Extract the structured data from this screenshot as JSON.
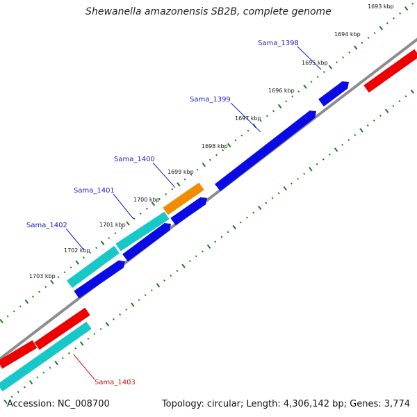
{
  "title": "Shewanella amazonensis SB2B, complete genome",
  "footer": {
    "accession": "Accession: NC_008700",
    "summary": "Topology: circular; Length: 4,306,142 bp; Genes: 3,774"
  },
  "colors": {
    "backbone": "#8c8c8c",
    "tick": "#1a7a1a",
    "gene_label_blue": "#1a1acc",
    "gene_label_red": "#cc1111",
    "blue_gene": "#0a0ae6",
    "cyan_gene": "#16c8c8",
    "orange_gene": "#f08c00",
    "red_gene": "#ee0000"
  },
  "ticks": [
    "1693 kbp",
    "1694 kbp",
    "1695 kbp",
    "1696 kbp",
    "1697 kbp",
    "1698 kbp",
    "1699 kbp",
    "1700 kbp",
    "1701 kbp",
    "1702 kbp",
    "1703 kbp"
  ],
  "gene_labels": [
    "Sama_1398",
    "Sama_1399",
    "Sama_1400",
    "Sama_1401",
    "Sama_1402",
    "Sama_1403"
  ]
}
